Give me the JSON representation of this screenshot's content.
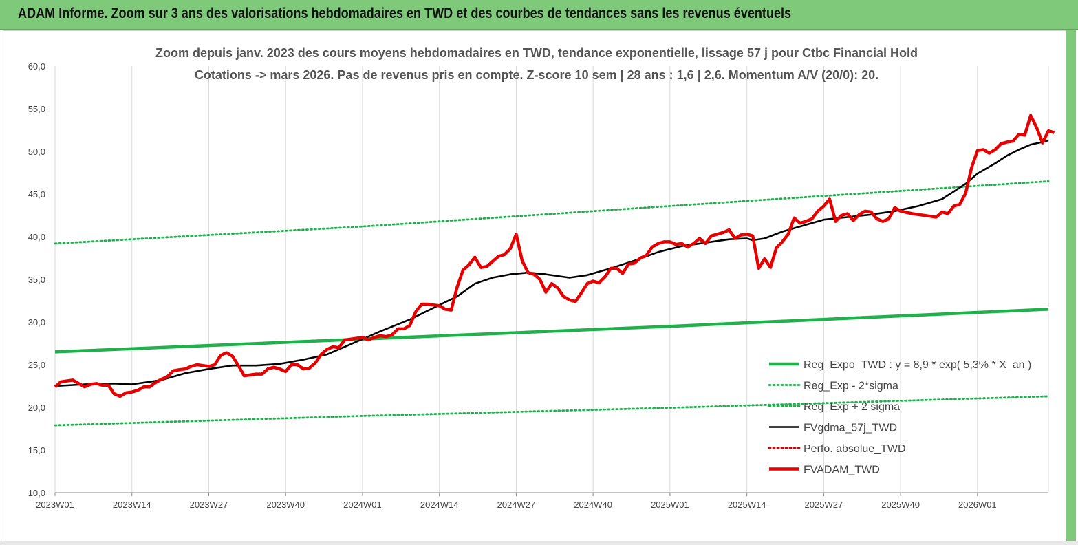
{
  "header": {
    "title": "ADAM Informe. Zoom sur 3 ans des valorisations hebdomadaires en TWD et des courbes de tendances sans les revenus éventuels"
  },
  "chart_data": {
    "type": "line",
    "title": "Zoom depuis janv. 2023 des cours moyens hebdomadaires en TWD, tendance exponentielle, lissage 57 j pour Ctbc Financial Hold",
    "subtitle": "Cotations -> mars 2026. Pas de revenus pris en compte. Z-score 10 sem  | 28 ans : 1,6 | 2,6. Momentum A/V (20/0): 20.",
    "xlabel": "",
    "ylabel": "",
    "ylim": [
      10,
      60
    ],
    "yticks": [
      "10,0",
      "15,0",
      "20,0",
      "25,0",
      "30,0",
      "35,0",
      "40,0",
      "45,0",
      "50,0",
      "55,0",
      "60,0"
    ],
    "xlim": [
      0,
      168
    ],
    "xticks": [
      {
        "x": 0,
        "label": "2023W01"
      },
      {
        "x": 13,
        "label": "2023W14"
      },
      {
        "x": 26,
        "label": "2023W27"
      },
      {
        "x": 39,
        "label": "2023W40"
      },
      {
        "x": 52,
        "label": "2024W01"
      },
      {
        "x": 65,
        "label": "2024W14"
      },
      {
        "x": 78,
        "label": "2024W27"
      },
      {
        "x": 91,
        "label": "2024W40"
      },
      {
        "x": 104,
        "label": "2025W01"
      },
      {
        "x": 117,
        "label": "2025W14"
      },
      {
        "x": 130,
        "label": "2025W27"
      },
      {
        "x": 143,
        "label": "2025W40"
      },
      {
        "x": 156,
        "label": "2026W01"
      }
    ],
    "grid": "vertical",
    "legend_position": "bottom-right",
    "series": [
      {
        "name": "Reg_Expo_TWD : y = 8,9 * exp( 5,3% *  X_an )",
        "color": "#1fb14c",
        "style": "solid-thick",
        "points": [
          [
            0,
            26.5
          ],
          [
            52,
            28.0
          ],
          [
            104,
            29.5
          ],
          [
            168,
            31.5
          ]
        ]
      },
      {
        "name": "Reg_Exp - 2*sigma",
        "color": "#1fb14c",
        "style": "dotted",
        "points": [
          [
            0,
            17.9
          ],
          [
            52,
            19.0
          ],
          [
            104,
            19.95
          ],
          [
            168,
            21.3
          ]
        ]
      },
      {
        "name": "Reg_Exp + 2 sigma",
        "color": "#1fb14c",
        "style": "dotted",
        "points": [
          [
            0,
            39.2
          ],
          [
            52,
            41.2
          ],
          [
            104,
            43.6
          ],
          [
            168,
            46.5
          ]
        ]
      },
      {
        "name": "FVgdma_57j_TWD",
        "color": "#000000",
        "style": "solid",
        "points": [
          [
            0,
            22.5
          ],
          [
            5,
            22.7
          ],
          [
            10,
            22.8
          ],
          [
            13,
            22.7
          ],
          [
            18,
            23.2
          ],
          [
            22,
            24.0
          ],
          [
            26,
            24.5
          ],
          [
            30,
            24.9
          ],
          [
            34,
            24.9
          ],
          [
            38,
            25.1
          ],
          [
            42,
            25.6
          ],
          [
            46,
            26.2
          ],
          [
            50,
            27.4
          ],
          [
            52,
            28.0
          ],
          [
            55,
            28.9
          ],
          [
            60,
            30.3
          ],
          [
            65,
            32.0
          ],
          [
            68,
            33.0
          ],
          [
            71,
            34.5
          ],
          [
            74,
            35.2
          ],
          [
            77,
            35.6
          ],
          [
            80,
            35.8
          ],
          [
            83,
            35.6
          ],
          [
            87,
            35.2
          ],
          [
            90,
            35.5
          ],
          [
            94,
            36.3
          ],
          [
            98,
            37.2
          ],
          [
            102,
            38.2
          ],
          [
            106,
            38.9
          ],
          [
            110,
            39.3
          ],
          [
            114,
            39.7
          ],
          [
            117,
            39.8
          ],
          [
            118,
            39.6
          ],
          [
            120,
            39.8
          ],
          [
            123,
            40.6
          ],
          [
            127,
            41.4
          ],
          [
            130,
            42.0
          ],
          [
            134,
            42.3
          ],
          [
            138,
            42.6
          ],
          [
            142,
            43.0
          ],
          [
            146,
            43.6
          ],
          [
            150,
            44.4
          ],
          [
            152,
            45.3
          ],
          [
            154,
            46.2
          ],
          [
            156,
            47.4
          ],
          [
            159,
            48.6
          ],
          [
            161,
            49.5
          ],
          [
            163,
            50.2
          ],
          [
            165,
            50.8
          ],
          [
            167,
            51.1
          ],
          [
            168,
            51.3
          ]
        ]
      },
      {
        "name": "Perfo. absolue_TWD",
        "color": "#e00000",
        "style": "dotted",
        "points": []
      },
      {
        "name": "FVADAM_TWD",
        "color": "#e60000",
        "style": "solid-thick",
        "points": [
          [
            0,
            22.4
          ],
          [
            1,
            23.0
          ],
          [
            2,
            23.1
          ],
          [
            3,
            23.2
          ],
          [
            4,
            22.8
          ],
          [
            5,
            22.4
          ],
          [
            6,
            22.7
          ],
          [
            7,
            22.8
          ],
          [
            8,
            22.6
          ],
          [
            9,
            22.6
          ],
          [
            10,
            21.6
          ],
          [
            11,
            21.3
          ],
          [
            12,
            21.7
          ],
          [
            13,
            21.8
          ],
          [
            14,
            22.0
          ],
          [
            15,
            22.4
          ],
          [
            16,
            22.4
          ],
          [
            17,
            22.9
          ],
          [
            18,
            23.3
          ],
          [
            19,
            23.6
          ],
          [
            20,
            24.3
          ],
          [
            21,
            24.4
          ],
          [
            22,
            24.5
          ],
          [
            23,
            24.8
          ],
          [
            24,
            25.0
          ],
          [
            25,
            24.9
          ],
          [
            26,
            24.8
          ],
          [
            27,
            25.0
          ],
          [
            28,
            26.1
          ],
          [
            29,
            26.4
          ],
          [
            30,
            26.0
          ],
          [
            31,
            24.9
          ],
          [
            32,
            23.7
          ],
          [
            33,
            23.8
          ],
          [
            34,
            23.9
          ],
          [
            35,
            23.9
          ],
          [
            36,
            24.5
          ],
          [
            37,
            24.7
          ],
          [
            38,
            24.5
          ],
          [
            39,
            24.2
          ],
          [
            40,
            25.0
          ],
          [
            41,
            25.0
          ],
          [
            42,
            24.5
          ],
          [
            43,
            24.6
          ],
          [
            44,
            25.2
          ],
          [
            45,
            26.2
          ],
          [
            46,
            26.8
          ],
          [
            47,
            27.1
          ],
          [
            48,
            27.0
          ],
          [
            49,
            27.9
          ],
          [
            50,
            28.0
          ],
          [
            51,
            28.1
          ],
          [
            52,
            28.2
          ],
          [
            53,
            27.9
          ],
          [
            54,
            28.2
          ],
          [
            55,
            28.4
          ],
          [
            56,
            28.3
          ],
          [
            57,
            28.5
          ],
          [
            58,
            29.2
          ],
          [
            59,
            29.2
          ],
          [
            60,
            29.6
          ],
          [
            61,
            31.2
          ],
          [
            62,
            32.1
          ],
          [
            63,
            32.1
          ],
          [
            64,
            32.0
          ],
          [
            65,
            31.9
          ],
          [
            66,
            31.5
          ],
          [
            67,
            31.4
          ],
          [
            68,
            34.1
          ],
          [
            69,
            36.1
          ],
          [
            70,
            36.7
          ],
          [
            71,
            37.6
          ],
          [
            72,
            36.4
          ],
          [
            73,
            36.5
          ],
          [
            74,
            37.1
          ],
          [
            75,
            37.7
          ],
          [
            76,
            37.9
          ],
          [
            77,
            38.6
          ],
          [
            78,
            40.3
          ],
          [
            79,
            37.2
          ],
          [
            80,
            35.8
          ],
          [
            81,
            35.6
          ],
          [
            82,
            35.0
          ],
          [
            83,
            33.5
          ],
          [
            84,
            34.5
          ],
          [
            85,
            34.0
          ],
          [
            86,
            33.0
          ],
          [
            87,
            32.6
          ],
          [
            88,
            32.4
          ],
          [
            89,
            33.4
          ],
          [
            90,
            34.5
          ],
          [
            91,
            34.8
          ],
          [
            92,
            34.6
          ],
          [
            93,
            35.3
          ],
          [
            94,
            36.3
          ],
          [
            95,
            36.3
          ],
          [
            96,
            35.7
          ],
          [
            97,
            36.8
          ],
          [
            98,
            36.9
          ],
          [
            99,
            37.5
          ],
          [
            100,
            37.8
          ],
          [
            101,
            38.8
          ],
          [
            102,
            39.2
          ],
          [
            103,
            39.4
          ],
          [
            104,
            39.4
          ],
          [
            105,
            39.1
          ],
          [
            106,
            39.2
          ],
          [
            107,
            38.8
          ],
          [
            108,
            39.2
          ],
          [
            109,
            39.8
          ],
          [
            110,
            39.2
          ],
          [
            111,
            40.1
          ],
          [
            112,
            40.3
          ],
          [
            113,
            40.5
          ],
          [
            114,
            40.8
          ],
          [
            115,
            39.8
          ],
          [
            116,
            40.2
          ],
          [
            117,
            40.3
          ],
          [
            118,
            40.1
          ],
          [
            119,
            36.3
          ],
          [
            120,
            37.4
          ],
          [
            121,
            36.4
          ],
          [
            122,
            38.7
          ],
          [
            123,
            39.4
          ],
          [
            124,
            40.3
          ],
          [
            125,
            42.2
          ],
          [
            126,
            41.6
          ],
          [
            127,
            41.8
          ],
          [
            128,
            42.1
          ],
          [
            129,
            43.0
          ],
          [
            130,
            43.6
          ],
          [
            131,
            44.4
          ],
          [
            132,
            41.8
          ],
          [
            133,
            42.5
          ],
          [
            134,
            42.7
          ],
          [
            135,
            41.9
          ],
          [
            136,
            42.6
          ],
          [
            137,
            43.0
          ],
          [
            138,
            42.9
          ],
          [
            139,
            42.1
          ],
          [
            140,
            41.8
          ],
          [
            141,
            42.1
          ],
          [
            142,
            43.4
          ],
          [
            143,
            43.0
          ],
          [
            145,
            42.7
          ],
          [
            148,
            42.4
          ],
          [
            149,
            42.3
          ],
          [
            150,
            42.9
          ],
          [
            151,
            42.7
          ],
          [
            152,
            43.6
          ],
          [
            153,
            43.8
          ],
          [
            154,
            45.1
          ],
          [
            155,
            48.1
          ],
          [
            156,
            50.1
          ],
          [
            157,
            50.2
          ],
          [
            158,
            49.8
          ],
          [
            159,
            50.2
          ],
          [
            160,
            50.9
          ],
          [
            161,
            51.1
          ],
          [
            162,
            51.2
          ],
          [
            163,
            52.0
          ],
          [
            164,
            51.9
          ],
          [
            165,
            54.2
          ],
          [
            166,
            52.8
          ],
          [
            167,
            51.0
          ],
          [
            168,
            52.4
          ],
          [
            169,
            52.2
          ]
        ]
      }
    ]
  }
}
